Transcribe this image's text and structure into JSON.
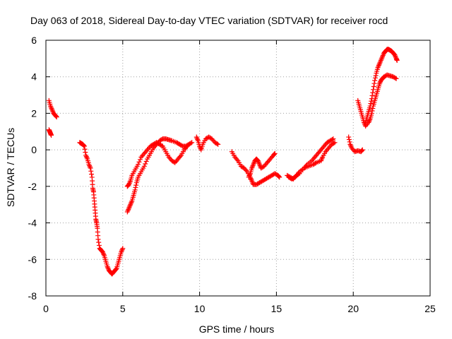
{
  "chart_data": {
    "type": "scatter",
    "title": "Day 063 of 2018, Sidereal Day-to-day VTEC variation (SDTVAR) for receiver rocd",
    "xlabel": "GPS time / hours",
    "ylabel": "SDTVAR / TECUs",
    "xlim": [
      0,
      25
    ],
    "ylim": [
      -8,
      6
    ],
    "xticks": [
      0,
      5,
      10,
      15,
      20,
      25
    ],
    "yticks": [
      -8,
      -6,
      -4,
      -2,
      0,
      2,
      4,
      6
    ],
    "grid": true,
    "marker": "+",
    "colors": {
      "series": "#ff0000",
      "grid": "#a0a0a0",
      "axes": "#000000"
    },
    "series": [
      {
        "name": "trace-1",
        "points": [
          [
            0.2,
            2.7
          ],
          [
            0.3,
            2.4
          ],
          [
            0.4,
            2.2
          ],
          [
            0.5,
            2.0
          ],
          [
            0.6,
            1.9
          ],
          [
            0.7,
            1.8
          ]
        ]
      },
      {
        "name": "trace-2",
        "points": [
          [
            0.2,
            1.1
          ],
          [
            0.25,
            1.0
          ],
          [
            0.3,
            0.9
          ],
          [
            0.35,
            0.8
          ]
        ]
      },
      {
        "name": "trace-3",
        "points": [
          [
            2.2,
            0.4
          ],
          [
            2.3,
            0.35
          ],
          [
            2.4,
            0.3
          ],
          [
            2.5,
            0.2
          ],
          [
            2.6,
            -0.3
          ],
          [
            2.7,
            -0.5
          ],
          [
            2.8,
            -0.8
          ],
          [
            2.9,
            -1.0
          ],
          [
            3.0,
            -1.5
          ],
          [
            3.05,
            -2.1
          ],
          [
            3.1,
            -2.3
          ],
          [
            3.15,
            -2.8
          ],
          [
            3.2,
            -3.3
          ],
          [
            3.25,
            -3.8
          ],
          [
            3.3,
            -4.0
          ],
          [
            3.35,
            -4.3
          ],
          [
            3.4,
            -4.9
          ],
          [
            3.5,
            -5.4
          ],
          [
            3.6,
            -5.5
          ],
          [
            3.7,
            -5.6
          ],
          [
            3.8,
            -5.8
          ],
          [
            3.9,
            -6.1
          ],
          [
            4.0,
            -6.4
          ],
          [
            4.1,
            -6.6
          ],
          [
            4.2,
            -6.7
          ],
          [
            4.3,
            -6.8
          ],
          [
            4.4,
            -6.7
          ],
          [
            4.5,
            -6.6
          ],
          [
            4.6,
            -6.5
          ],
          [
            4.7,
            -6.2
          ],
          [
            4.8,
            -5.9
          ],
          [
            4.9,
            -5.6
          ],
          [
            5.0,
            -5.4
          ]
        ]
      },
      {
        "name": "trace-4",
        "points": [
          [
            5.3,
            -3.4
          ],
          [
            5.4,
            -3.2
          ],
          [
            5.5,
            -3.0
          ],
          [
            5.6,
            -2.8
          ],
          [
            5.7,
            -2.5
          ],
          [
            5.8,
            -2.2
          ],
          [
            5.9,
            -1.8
          ],
          [
            6.0,
            -1.5
          ],
          [
            6.2,
            -1.2
          ],
          [
            6.4,
            -0.9
          ],
          [
            6.6,
            -0.5
          ],
          [
            6.8,
            -0.2
          ],
          [
            7.0,
            0.1
          ],
          [
            7.2,
            0.3
          ],
          [
            7.4,
            0.5
          ],
          [
            7.6,
            0.6
          ],
          [
            7.8,
            0.6
          ],
          [
            8.0,
            0.55
          ],
          [
            8.2,
            0.5
          ],
          [
            8.5,
            0.4
          ],
          [
            8.7,
            0.3
          ],
          [
            8.9,
            0.2
          ],
          [
            9.1,
            0.2
          ],
          [
            9.3,
            0.3
          ],
          [
            9.5,
            0.4
          ]
        ]
      },
      {
        "name": "trace-5",
        "points": [
          [
            5.3,
            -2.0
          ],
          [
            5.4,
            -1.9
          ],
          [
            5.5,
            -1.7
          ],
          [
            5.6,
            -1.4
          ],
          [
            5.8,
            -1.1
          ],
          [
            6.0,
            -0.8
          ],
          [
            6.2,
            -0.4
          ],
          [
            6.4,
            -0.2
          ],
          [
            6.6,
            0.0
          ],
          [
            6.8,
            0.2
          ],
          [
            7.0,
            0.3
          ],
          [
            7.2,
            0.4
          ],
          [
            7.4,
            0.3
          ],
          [
            7.6,
            0.2
          ],
          [
            7.8,
            -0.1
          ],
          [
            8.0,
            -0.4
          ],
          [
            8.2,
            -0.6
          ],
          [
            8.4,
            -0.7
          ],
          [
            8.6,
            -0.5
          ],
          [
            8.8,
            -0.3
          ],
          [
            9.0,
            0.0
          ],
          [
            9.2,
            0.2
          ]
        ]
      },
      {
        "name": "trace-6",
        "points": [
          [
            9.8,
            0.7
          ],
          [
            9.9,
            0.5
          ],
          [
            10.0,
            0.2
          ],
          [
            10.1,
            0.0
          ],
          [
            10.2,
            0.3
          ],
          [
            10.4,
            0.6
          ],
          [
            10.6,
            0.7
          ],
          [
            10.8,
            0.6
          ],
          [
            11.0,
            0.4
          ],
          [
            11.2,
            0.3
          ]
        ]
      },
      {
        "name": "trace-7",
        "points": [
          [
            12.1,
            -0.1
          ],
          [
            12.3,
            -0.4
          ],
          [
            12.5,
            -0.6
          ],
          [
            12.7,
            -0.9
          ],
          [
            12.9,
            -1.0
          ],
          [
            13.1,
            -1.2
          ],
          [
            13.3,
            -1.5
          ],
          [
            13.4,
            -1.7
          ],
          [
            13.5,
            -1.9
          ],
          [
            13.7,
            -1.9
          ],
          [
            13.9,
            -1.8
          ],
          [
            14.1,
            -1.7
          ],
          [
            14.3,
            -1.6
          ],
          [
            14.5,
            -1.5
          ],
          [
            14.7,
            -1.4
          ],
          [
            14.9,
            -1.3
          ],
          [
            15.1,
            -1.4
          ],
          [
            15.2,
            -1.5
          ]
        ]
      },
      {
        "name": "trace-8",
        "points": [
          [
            13.2,
            -1.5
          ],
          [
            13.3,
            -1.3
          ],
          [
            13.4,
            -1.0
          ],
          [
            13.5,
            -0.8
          ],
          [
            13.6,
            -0.6
          ],
          [
            13.7,
            -0.5
          ],
          [
            13.8,
            -0.6
          ],
          [
            13.9,
            -0.8
          ],
          [
            14.0,
            -1.0
          ],
          [
            14.2,
            -0.9
          ],
          [
            14.4,
            -0.7
          ],
          [
            14.6,
            -0.5
          ],
          [
            14.8,
            -0.3
          ],
          [
            14.9,
            -0.2
          ]
        ]
      },
      {
        "name": "trace-9",
        "points": [
          [
            15.7,
            -1.4
          ],
          [
            15.9,
            -1.5
          ],
          [
            16.1,
            -1.6
          ],
          [
            16.3,
            -1.4
          ],
          [
            16.5,
            -1.2
          ],
          [
            16.8,
            -1.0
          ],
          [
            17.1,
            -0.9
          ],
          [
            17.4,
            -0.8
          ],
          [
            17.6,
            -0.7
          ],
          [
            17.9,
            -0.6
          ],
          [
            18.0,
            -0.4
          ],
          [
            18.2,
            -0.1
          ],
          [
            18.4,
            0.1
          ],
          [
            18.6,
            0.3
          ],
          [
            18.8,
            0.4
          ]
        ]
      },
      {
        "name": "trace-10",
        "points": [
          [
            15.8,
            -1.5
          ],
          [
            16.0,
            -1.6
          ],
          [
            16.2,
            -1.5
          ],
          [
            16.5,
            -1.3
          ],
          [
            16.8,
            -1.0
          ],
          [
            17.0,
            -0.8
          ],
          [
            17.3,
            -0.6
          ],
          [
            17.5,
            -0.4
          ],
          [
            17.7,
            -0.2
          ],
          [
            17.9,
            0.0
          ],
          [
            18.1,
            0.2
          ],
          [
            18.3,
            0.4
          ],
          [
            18.5,
            0.5
          ],
          [
            18.7,
            0.6
          ]
        ]
      },
      {
        "name": "trace-11",
        "points": [
          [
            19.7,
            0.7
          ],
          [
            19.8,
            0.3
          ],
          [
            19.9,
            0.1
          ],
          [
            20.1,
            -0.1
          ],
          [
            20.3,
            -0.05
          ],
          [
            20.5,
            -0.1
          ],
          [
            20.6,
            0.0
          ]
        ]
      },
      {
        "name": "trace-12",
        "points": [
          [
            20.3,
            2.7
          ],
          [
            20.4,
            2.4
          ],
          [
            20.5,
            2.1
          ],
          [
            20.6,
            1.8
          ],
          [
            20.7,
            1.5
          ],
          [
            20.8,
            1.3
          ],
          [
            21.0,
            1.5
          ],
          [
            21.1,
            1.7
          ],
          [
            21.2,
            2.0
          ],
          [
            21.3,
            2.4
          ],
          [
            21.4,
            2.7
          ],
          [
            21.5,
            3.0
          ],
          [
            21.6,
            3.3
          ],
          [
            21.7,
            3.6
          ],
          [
            21.8,
            3.8
          ],
          [
            21.9,
            3.9
          ],
          [
            22.0,
            4.0
          ],
          [
            22.2,
            4.1
          ],
          [
            22.4,
            4.05
          ],
          [
            22.6,
            4.0
          ],
          [
            22.8,
            3.9
          ]
        ]
      },
      {
        "name": "trace-13",
        "points": [
          [
            20.8,
            1.5
          ],
          [
            20.9,
            1.8
          ],
          [
            21.0,
            2.1
          ],
          [
            21.1,
            2.4
          ],
          [
            21.2,
            2.8
          ],
          [
            21.3,
            3.3
          ],
          [
            21.4,
            3.8
          ],
          [
            21.5,
            4.2
          ],
          [
            21.6,
            4.5
          ],
          [
            21.7,
            4.7
          ],
          [
            21.8,
            4.9
          ],
          [
            21.9,
            5.1
          ],
          [
            22.0,
            5.3
          ],
          [
            22.1,
            5.4
          ],
          [
            22.2,
            5.5
          ],
          [
            22.3,
            5.5
          ],
          [
            22.4,
            5.45
          ],
          [
            22.5,
            5.4
          ],
          [
            22.6,
            5.3
          ],
          [
            22.7,
            5.2
          ],
          [
            22.8,
            5.0
          ],
          [
            22.85,
            4.9
          ]
        ]
      }
    ]
  }
}
